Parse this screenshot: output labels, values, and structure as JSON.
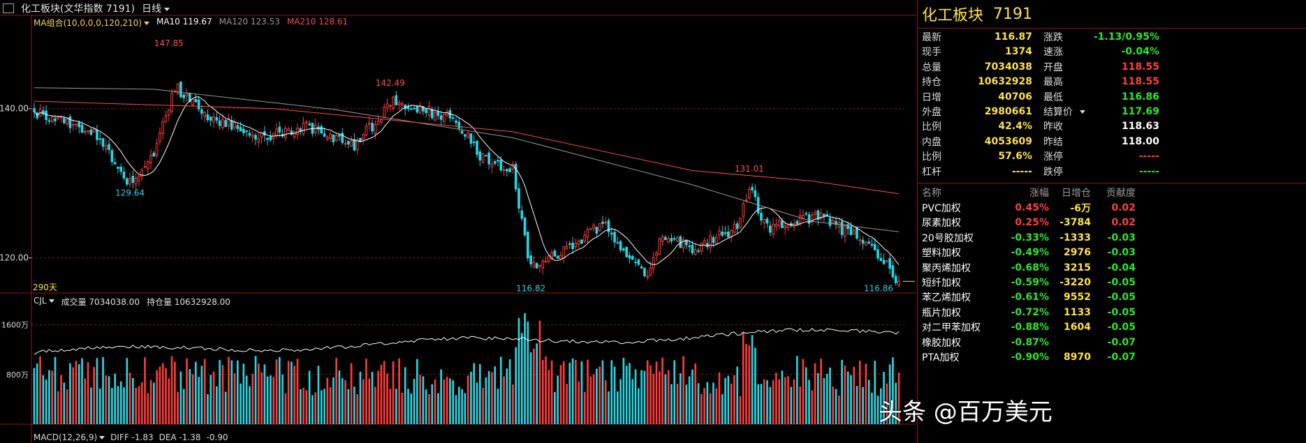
{
  "header": {
    "symbol": "化工板块(文华指数 7191)",
    "period": "日线"
  },
  "ma_legend": {
    "group": "MA组合(10,0,0,0,120,210)",
    "ma10": "MA10 119.67",
    "ma120": "MA120 123.53",
    "ma210": "MA210 128.61",
    "colors": {
      "group": "#ffd54a",
      "ma10": "#ffffff",
      "ma120": "#9a9a9a",
      "ma210": "#ff4a4a"
    }
  },
  "volume_legend": {
    "name": "CJL",
    "volume": "成交量 7034038.00",
    "oi": "持仓量 10632928.00"
  },
  "macd_legend": {
    "name": "MACD(12,26,9)",
    "diff": "DIFF -1.83",
    "dea": "DEA -1.38",
    "macd": "-0.90"
  },
  "chart_data": {
    "type": "candlestick",
    "ylim": [
      115.3,
      152.5
    ],
    "y_ticks": [
      "140.00",
      "120.00"
    ],
    "y_tick_values": [
      140,
      120
    ],
    "volume_ylim": [
      0,
      2000
    ],
    "volume_ticks": [
      "1600万",
      "800万"
    ],
    "volume_tick_values": [
      1600,
      800
    ],
    "annotations": [
      {
        "label": "147.85",
        "color": "#ff5050"
      },
      {
        "label": "129.64",
        "color": "#27d6e3"
      },
      {
        "label": "142.49",
        "color": "#ff5050"
      },
      {
        "label": "116.82",
        "color": "#27d6e3"
      },
      {
        "label": "131.01",
        "color": "#ff5050"
      },
      {
        "label": "116.86",
        "color": "#27d6e3"
      }
    ],
    "days_label": "290天",
    "keypoints": [
      {
        "i": 0,
        "v": 139.6
      },
      {
        "i": 20,
        "v": 137.0
      },
      {
        "i": 32,
        "v": 129.9
      },
      {
        "i": 40,
        "v": 134.2
      },
      {
        "i": 47,
        "v": 143.0
      },
      {
        "i": 56,
        "v": 139.6
      },
      {
        "i": 75,
        "v": 136.1
      },
      {
        "i": 90,
        "v": 137.7
      },
      {
        "i": 107,
        "v": 135.1
      },
      {
        "i": 120,
        "v": 140.9
      },
      {
        "i": 140,
        "v": 138.7
      },
      {
        "i": 150,
        "v": 133.3
      },
      {
        "i": 160,
        "v": 131.9
      },
      {
        "i": 166,
        "v": 118.5
      },
      {
        "i": 175,
        "v": 120.7
      },
      {
        "i": 185,
        "v": 123.0
      },
      {
        "i": 190,
        "v": 124.7
      },
      {
        "i": 205,
        "v": 117.6
      },
      {
        "i": 210,
        "v": 123.2
      },
      {
        "i": 220,
        "v": 121.0
      },
      {
        "i": 235,
        "v": 124.0
      },
      {
        "i": 239,
        "v": 129.3
      },
      {
        "i": 245,
        "v": 124.1
      },
      {
        "i": 258,
        "v": 125.3
      },
      {
        "i": 262,
        "v": 125.6
      },
      {
        "i": 275,
        "v": 122.8
      },
      {
        "i": 283,
        "v": 119.8
      },
      {
        "i": 289,
        "v": 116.9
      }
    ],
    "ma120_points": [
      [
        0,
        142.8
      ],
      [
        40,
        142.6
      ],
      [
        100,
        139.9
      ],
      [
        160,
        136.1
      ],
      [
        220,
        129.8
      ],
      [
        260,
        124.9
      ],
      [
        289,
        123.5
      ]
    ],
    "ma210_points": [
      [
        0,
        141.0
      ],
      [
        80,
        140.0
      ],
      [
        160,
        136.9
      ],
      [
        220,
        131.7
      ],
      [
        260,
        130.3
      ],
      [
        289,
        128.6
      ]
    ],
    "colors": {
      "up": "#ff3b3b",
      "down": "#27d6e3",
      "grid": "#8a1b1b",
      "axis_text": "#dcdcdc"
    }
  },
  "panel": {
    "title": "化工板块",
    "code": "7191",
    "rows": [
      {
        "l1": "最新",
        "v1": "116.87",
        "c1": "#ffe24a",
        "l2": "涨跌",
        "v2": "-1.13/0.95%",
        "c2": "#2ee82e"
      },
      {
        "l1": "现手",
        "v1": "1374",
        "c1": "#ffe24a",
        "l2": "速涨",
        "v2": "-0.04%",
        "c2": "#2ee82e"
      },
      {
        "l1": "总量",
        "v1": "7034038",
        "c1": "#ffe24a",
        "l2": "开盘",
        "v2": "118.55",
        "c2": "#ff4040"
      },
      {
        "l1": "持仓",
        "v1": "10632928",
        "c1": "#ffe24a",
        "l2": "最高",
        "v2": "118.55",
        "c2": "#ff4040"
      },
      {
        "l1": "日增",
        "v1": "40706",
        "c1": "#ffe24a",
        "l2": "最低",
        "v2": "116.86",
        "c2": "#2ee82e"
      },
      {
        "l1": "外盘",
        "v1": "2980661",
        "c1": "#ffe24a",
        "l2": "结算价",
        "v2": "117.69",
        "c2": "#2ee82e"
      },
      {
        "l1": "比例",
        "v1": "42.4%",
        "c1": "#ffe24a",
        "l2": "昨收",
        "v2": "118.63",
        "c2": "#ffffff"
      },
      {
        "l1": "内盘",
        "v1": "4053609",
        "c1": "#ffe24a",
        "l2": "昨结",
        "v2": "118.00",
        "c2": "#ffffff"
      },
      {
        "l1": "比例",
        "v1": "57.6%",
        "c1": "#ffe24a",
        "l2": "涨停",
        "v2": "-----",
        "c2": "#ff4040"
      },
      {
        "l1": "杠杆",
        "v1": "-----",
        "c1": "#ffe24a",
        "l2": "跌停",
        "v2": "-----",
        "c2": "#2ee82e"
      }
    ],
    "table_headers": [
      "名称",
      "涨幅",
      "日增仓",
      "贡献度"
    ],
    "constituents": [
      {
        "name": "PVC加权",
        "chg": "0.45%",
        "chg_color": "#ff4040",
        "oi": "-6万",
        "oi_color": "#ffe24a",
        "contrib": "0.02",
        "contrib_color": "#ff4040"
      },
      {
        "name": "尿素加权",
        "chg": "0.25%",
        "chg_color": "#ff4040",
        "oi": "-3784",
        "oi_color": "#ffe24a",
        "contrib": "0.02",
        "contrib_color": "#ff4040"
      },
      {
        "name": "20号胶加权",
        "chg": "-0.33%",
        "chg_color": "#2ee82e",
        "oi": "-1333",
        "oi_color": "#ffe24a",
        "contrib": "-0.03",
        "contrib_color": "#2ee82e"
      },
      {
        "name": "塑料加权",
        "chg": "-0.49%",
        "chg_color": "#2ee82e",
        "oi": "2976",
        "oi_color": "#ffe24a",
        "contrib": "-0.03",
        "contrib_color": "#2ee82e"
      },
      {
        "name": "聚丙烯加权",
        "chg": "-0.68%",
        "chg_color": "#2ee82e",
        "oi": "3215",
        "oi_color": "#ffe24a",
        "contrib": "-0.04",
        "contrib_color": "#2ee82e"
      },
      {
        "name": "短纤加权",
        "chg": "-0.59%",
        "chg_color": "#2ee82e",
        "oi": "-3220",
        "oi_color": "#ffe24a",
        "contrib": "-0.05",
        "contrib_color": "#2ee82e"
      },
      {
        "name": "苯乙烯加权",
        "chg": "-0.61%",
        "chg_color": "#2ee82e",
        "oi": "9552",
        "oi_color": "#ffe24a",
        "contrib": "-0.05",
        "contrib_color": "#2ee82e"
      },
      {
        "name": "瓶片加权",
        "chg": "-0.72%",
        "chg_color": "#2ee82e",
        "oi": "1133",
        "oi_color": "#ffe24a",
        "contrib": "-0.05",
        "contrib_color": "#2ee82e"
      },
      {
        "name": "对二甲苯加权",
        "chg": "-0.88%",
        "chg_color": "#2ee82e",
        "oi": "1604",
        "oi_color": "#ffe24a",
        "contrib": "-0.05",
        "contrib_color": "#2ee82e"
      },
      {
        "name": "橡胶加权",
        "chg": "-0.87%",
        "chg_color": "#2ee82e",
        "oi": "",
        "oi_color": "#ffe24a",
        "contrib": "-0.07",
        "contrib_color": "#2ee82e"
      },
      {
        "name": "PTA加权",
        "chg": "-0.90%",
        "chg_color": "#2ee82e",
        "oi": "8970",
        "oi_color": "#ffe24a",
        "contrib": "-0.07",
        "contrib_color": "#2ee82e"
      }
    ]
  },
  "watermark": "头条 @百万美元"
}
